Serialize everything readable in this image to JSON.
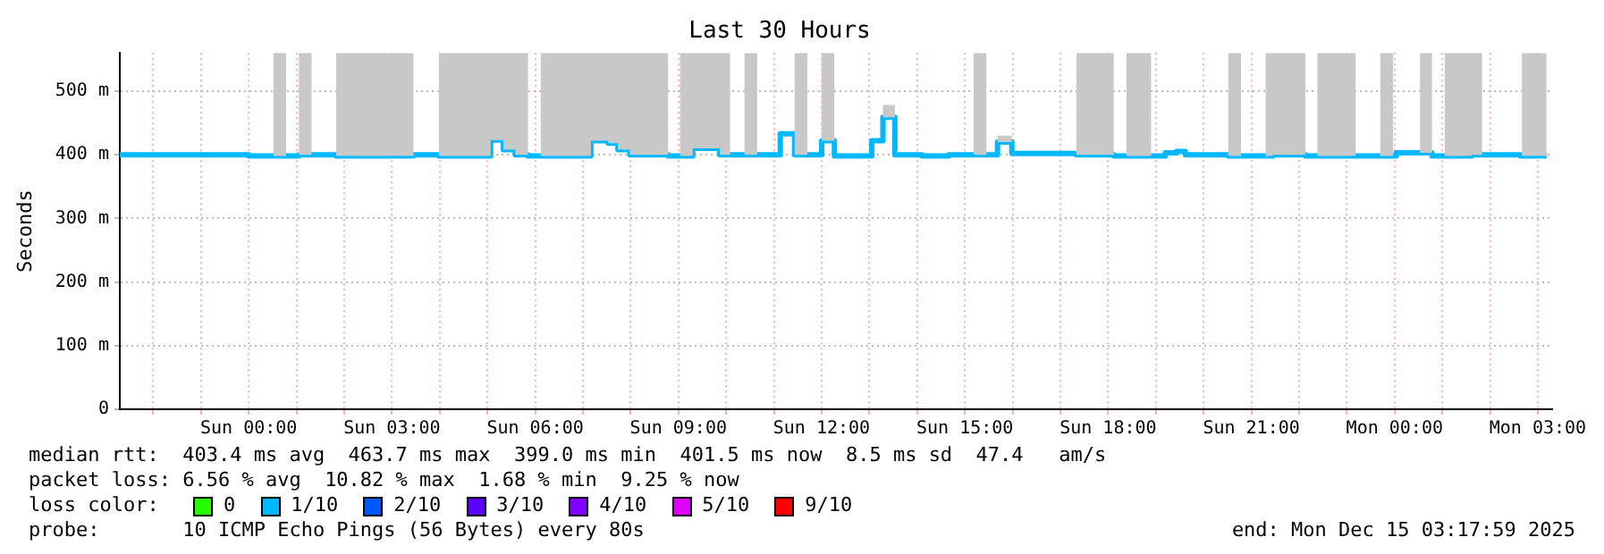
{
  "chart_data": {
    "type": "step",
    "title": "Last 30 Hours",
    "ylabel": "Seconds",
    "x": [
      "2025-12-13T21:18",
      "2025-12-14T00:00",
      "2025-12-14T00:31",
      "2025-12-14T00:47",
      "2025-12-14T01:03",
      "2025-12-14T01:19",
      "2025-12-14T01:50",
      "2025-12-14T03:27",
      "2025-12-14T03:59",
      "2025-12-14T05:04",
      "2025-12-14T05:20",
      "2025-12-14T05:35",
      "2025-12-14T05:51",
      "2025-12-14T06:07",
      "2025-12-14T07:10",
      "2025-12-14T07:32",
      "2025-12-14T07:44",
      "2025-12-14T07:59",
      "2025-12-14T08:47",
      "2025-12-14T09:02",
      "2025-12-14T09:18",
      "2025-12-14T09:52",
      "2025-12-14T10:05",
      "2025-12-14T10:23",
      "2025-12-14T10:39",
      "2025-12-14T11:08",
      "2025-12-14T11:26",
      "2025-12-14T11:42",
      "2025-12-14T12:00",
      "2025-12-14T12:16",
      "2025-12-14T13:03",
      "2025-12-14T13:17",
      "2025-12-14T13:32",
      "2025-12-14T14:06",
      "2025-12-14T14:40",
      "2025-12-14T15:11",
      "2025-12-14T15:27",
      "2025-12-14T15:41",
      "2025-12-14T15:59",
      "2025-12-14T17:20",
      "2025-12-14T18:07",
      "2025-12-14T18:23",
      "2025-12-14T18:54",
      "2025-12-14T19:12",
      "2025-12-14T19:26",
      "2025-12-14T19:37",
      "2025-12-14T20:31",
      "2025-12-14T20:47",
      "2025-12-14T21:18",
      "2025-12-14T21:27",
      "2025-12-14T22:08",
      "2025-12-14T22:23",
      "2025-12-14T23:11",
      "2025-12-14T23:42",
      "2025-12-14T23:58",
      "2025-12-15T00:02",
      "2025-12-15T00:32",
      "2025-12-15T00:47",
      "2025-12-15T01:03",
      "2025-12-15T01:37",
      "2025-12-15T01:50",
      "2025-12-15T02:38",
      "2025-12-15T02:40",
      "2025-12-15T03:11"
    ],
    "series": [
      {
        "color": "#00b8ff",
        "values": [
          400,
          398,
          398,
          398,
          400,
          400,
          398,
          400,
          398,
          423,
          408,
          400,
          398,
          398,
          422,
          418,
          408,
          400,
          398,
          398,
          410,
          400,
          400,
          400,
          400,
          433,
          400,
          400,
          422,
          398,
          422,
          459,
          400,
          398,
          400,
          400,
          400,
          420,
          402,
          400,
          398,
          398,
          398,
          403,
          405,
          400,
          398,
          398,
          398,
          400,
          398,
          398,
          398,
          398,
          398,
          403,
          403,
          398,
          398,
          400,
          400,
          398,
          398,
          398
        ],
        "lower": [
          400,
          398,
          398,
          398,
          400,
          400,
          398,
          400,
          398,
          423,
          408,
          400,
          398,
          398,
          422,
          418,
          408,
          400,
          398,
          398,
          410,
          400,
          400,
          400,
          400,
          433,
          400,
          400,
          422,
          398,
          422,
          459,
          400,
          398,
          400,
          400,
          400,
          420,
          402,
          400,
          398,
          398,
          398,
          403,
          405,
          400,
          398,
          398,
          398,
          400,
          398,
          398,
          398,
          398,
          398,
          403,
          403,
          398,
          398,
          400,
          400,
          398,
          398,
          398
        ],
        "upper": [
          400,
          398,
          560,
          398,
          560,
          400,
          560,
          400,
          560,
          560,
          560,
          560,
          398,
          560,
          560,
          560,
          560,
          560,
          398,
          560,
          560,
          560,
          400,
          560,
          400,
          433,
          560,
          400,
          560,
          398,
          422,
          478,
          400,
          398,
          400,
          560,
          400,
          430,
          402,
          560,
          398,
          560,
          398,
          403,
          405,
          400,
          560,
          398,
          560,
          560,
          398,
          560,
          398,
          560,
          398,
          403,
          560,
          398,
          560,
          560,
          400,
          398,
          560,
          398
        ],
        "line_style": "solid"
      },
      {
        "name": "0",
        "color": "#26ff00",
        "values": [
          null,
          null,
          null,
          null,
          null,
          null,
          null,
          null,
          null,
          null,
          null,
          null,
          null,
          null,
          null,
          null,
          null,
          null,
          null,
          null,
          null,
          null,
          null,
          null,
          null,
          null,
          null,
          null,
          null,
          null,
          null,
          null,
          null,
          null,
          null,
          null,
          null,
          null,
          null,
          null,
          null,
          null,
          null,
          null,
          null,
          null,
          null,
          null,
          null,
          null,
          null,
          null,
          null,
          null,
          null,
          null,
          null,
          null,
          null,
          null,
          null,
          null,
          null,
          null
        ]
      },
      {
        "name": "1/10",
        "color": "#00b8ff",
        "values": [
          null,
          null,
          null,
          null,
          null,
          null,
          null,
          null,
          null,
          null,
          null,
          null,
          null,
          null,
          null,
          null,
          null,
          null,
          null,
          null,
          null,
          null,
          null,
          null,
          null,
          null,
          null,
          null,
          null,
          null,
          null,
          null,
          null,
          null,
          null,
          null,
          null,
          null,
          null,
          null,
          null,
          null,
          null,
          null,
          null,
          null,
          null,
          null,
          null,
          null,
          null,
          null,
          null,
          null,
          null,
          null,
          null,
          null,
          null,
          null,
          null,
          null,
          null,
          null
        ]
      },
      {
        "name": "2/10",
        "color": "#0059ff",
        "values": [
          null,
          null,
          null,
          null,
          null,
          null,
          null,
          null,
          null,
          null,
          null,
          null,
          null,
          null,
          null,
          null,
          null,
          null,
          null,
          null,
          null,
          null,
          null,
          null,
          null,
          null,
          null,
          null,
          null,
          null,
          null,
          null,
          null,
          null,
          null,
          null,
          null,
          null,
          null,
          null,
          null,
          null,
          null,
          null,
          null,
          null,
          null,
          null,
          null,
          null,
          null,
          null,
          null,
          null,
          null,
          null,
          null,
          null,
          null,
          null,
          null,
          null,
          null,
          null
        ]
      },
      {
        "name": "3/10",
        "color": "#5e00ff",
        "values": [
          null,
          null,
          null,
          null,
          null,
          null,
          null,
          null,
          null,
          null,
          null,
          null,
          null,
          null,
          null,
          null,
          null,
          null,
          null,
          null,
          null,
          null,
          null,
          null,
          null,
          null,
          null,
          null,
          null,
          null,
          null,
          null,
          null,
          null,
          null,
          null,
          null,
          null,
          null,
          null,
          null,
          null,
          null,
          null,
          null,
          null,
          null,
          null,
          null,
          null,
          null,
          null,
          null,
          null,
          null,
          null,
          null,
          null,
          null,
          null,
          null,
          null,
          null,
          null
        ]
      },
      {
        "name": "4/10",
        "color": "#7e00ff",
        "values": [
          null,
          null,
          null,
          null,
          null,
          null,
          null,
          null,
          null,
          null,
          null,
          null,
          null,
          null,
          null,
          null,
          null,
          null,
          null,
          null,
          null,
          null,
          null,
          null,
          null,
          null,
          null,
          null,
          null,
          null,
          null,
          null,
          null,
          null,
          null,
          null,
          null,
          null,
          null,
          null,
          null,
          null,
          null,
          null,
          null,
          null,
          null,
          null,
          null,
          null,
          null,
          null,
          null,
          null,
          null,
          null,
          null,
          null,
          null,
          null,
          null,
          null,
          null,
          null
        ]
      },
      {
        "name": "5/10",
        "color": "#dd00ff",
        "values": [
          null,
          null,
          null,
          null,
          null,
          null,
          null,
          null,
          null,
          null,
          null,
          null,
          null,
          null,
          null,
          null,
          null,
          null,
          null,
          null,
          null,
          null,
          null,
          null,
          null,
          null,
          null,
          null,
          null,
          null,
          null,
          null,
          null,
          null,
          null,
          null,
          null,
          null,
          null,
          null,
          null,
          null,
          null,
          null,
          null,
          null,
          null,
          null,
          null,
          null,
          null,
          null,
          null,
          null,
          null,
          null,
          null,
          null,
          null,
          null,
          null,
          null,
          null,
          null
        ]
      },
      {
        "name": "9/10",
        "color": "#ff0000",
        "values": [
          null,
          null,
          null,
          null,
          null,
          null,
          null,
          null,
          null,
          null,
          null,
          null,
          null,
          null,
          null,
          null,
          null,
          null,
          null,
          null,
          null,
          null,
          null,
          null,
          null,
          null,
          null,
          null,
          null,
          null,
          null,
          null,
          null,
          null,
          null,
          null,
          null,
          null,
          null,
          null,
          null,
          null,
          null,
          null,
          null,
          null,
          null,
          null,
          null,
          null,
          null,
          null,
          null,
          null,
          null,
          null,
          null,
          null,
          null,
          null,
          null,
          null,
          null,
          null
        ]
      }
    ],
    "xlim": [
      "2025-12-13T21:18",
      "2025-12-15T03:18"
    ],
    "xticks": [
      {
        "value": "2025-12-13T22:00",
        "label": null
      },
      {
        "value": "2025-12-13T23:00",
        "label": null
      },
      {
        "value": "2025-12-14T00:00",
        "label": "Sun 00:00"
      },
      {
        "value": "2025-12-14T01:00",
        "label": null
      },
      {
        "value": "2025-12-14T02:00",
        "label": null
      },
      {
        "value": "2025-12-14T03:00",
        "label": "Sun 03:00"
      },
      {
        "value": "2025-12-14T04:00",
        "label": null
      },
      {
        "value": "2025-12-14T05:00",
        "label": null
      },
      {
        "value": "2025-12-14T06:00",
        "label": "Sun 06:00"
      },
      {
        "value": "2025-12-14T07:00",
        "label": null
      },
      {
        "value": "2025-12-14T08:00",
        "label": null
      },
      {
        "value": "2025-12-14T09:00",
        "label": "Sun 09:00"
      },
      {
        "value": "2025-12-14T10:00",
        "label": null
      },
      {
        "value": "2025-12-14T11:00",
        "label": null
      },
      {
        "value": "2025-12-14T12:00",
        "label": "Sun 12:00"
      },
      {
        "value": "2025-12-14T13:00",
        "label": null
      },
      {
        "value": "2025-12-14T14:00",
        "label": null
      },
      {
        "value": "2025-12-14T15:00",
        "label": "Sun 15:00"
      },
      {
        "value": "2025-12-14T16:00",
        "label": null
      },
      {
        "value": "2025-12-14T17:00",
        "label": null
      },
      {
        "value": "2025-12-14T18:00",
        "label": "Sun 18:00"
      },
      {
        "value": "2025-12-14T19:00",
        "label": null
      },
      {
        "value": "2025-12-14T20:00",
        "label": null
      },
      {
        "value": "2025-12-14T21:00",
        "label": "Sun 21:00"
      },
      {
        "value": "2025-12-14T22:00",
        "label": null
      },
      {
        "value": "2025-12-14T23:00",
        "label": null
      },
      {
        "value": "2025-12-15T00:00",
        "label": "Mon 00:00"
      },
      {
        "value": "2025-12-15T01:00",
        "label": null
      },
      {
        "value": "2025-12-15T02:00",
        "label": null
      },
      {
        "value": "2025-12-15T03:00",
        "label": "Mon 03:00"
      }
    ],
    "ylim": [
      0,
      560
    ],
    "yticks": [
      0,
      {
        "value": 100,
        "label": "100 m"
      },
      {
        "value": 200,
        "label": "200 m"
      },
      {
        "value": 300,
        "label": "300 m"
      },
      {
        "value": 400,
        "label": "400 m"
      },
      {
        "value": 500,
        "label": "500 m"
      }
    ],
    "grid": true,
    "legend": "bottom",
    "annotations": [
      "median rtt:  403.4 ms avg  463.7 ms max  399.0 ms min  401.5 ms now  8.5 ms sd  47.4   am/s",
      "packet loss: 6.56 % avg  10.82 % max  1.68 % min  9.25 % now",
      "loss color:",
      "probe:       10 ICMP Echo Pings (56 Bytes) every 80s",
      "end: Mon Dec 15 03:17:59 2025"
    ]
  }
}
